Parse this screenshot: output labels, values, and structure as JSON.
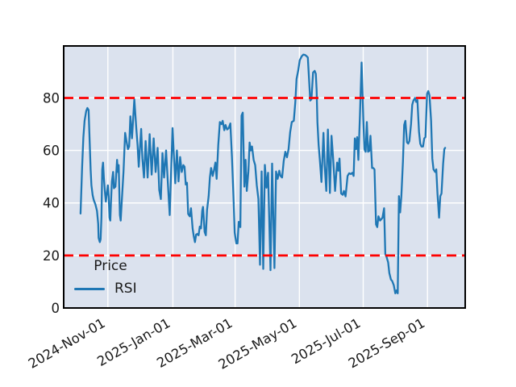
{
  "figure": {
    "background": "#ffffff"
  },
  "legend": {
    "title": "Price",
    "items": [
      {
        "label": "RSI",
        "color": "#1f77b4"
      }
    ]
  },
  "chart_data": {
    "type": "line",
    "title": "",
    "xlabel": "",
    "ylabel": "",
    "plot_background": "#dbe2ee",
    "grid_color": "#ffffff",
    "border_color": "#000000",
    "tick_text_color": "#1a1a1a",
    "x_axis": {
      "tick_labels": [
        "2024-Nov-01",
        "2025-Jan-01",
        "2025-Mar-01",
        "2025-May-01",
        "2025-Jul-01",
        "2025-Sep-01"
      ],
      "tick_positions": [
        0.11,
        0.272,
        0.427,
        0.587,
        0.746,
        0.906
      ],
      "unit": "fraction of x-axis width"
    },
    "y_axis": {
      "ticks": [
        0,
        20,
        40,
        60,
        80
      ],
      "range": [
        0,
        99.8
      ]
    },
    "thresholds": [
      {
        "value": 80,
        "color": "#fe0000",
        "style": "dashed"
      },
      {
        "value": 20,
        "color": "#fe0000",
        "style": "dashed"
      }
    ],
    "legend_position": "lower left",
    "grid": true,
    "series": [
      {
        "name": "RSI",
        "color": "#1f77b4",
        "points": [
          [
            0.042,
            36
          ],
          [
            0.046,
            54
          ],
          [
            0.049,
            65
          ],
          [
            0.052,
            71.3
          ],
          [
            0.056,
            75
          ],
          [
            0.059,
            76.2
          ],
          [
            0.062,
            75.4
          ],
          [
            0.064,
            66.2
          ],
          [
            0.067,
            52.8
          ],
          [
            0.069,
            46.7
          ],
          [
            0.072,
            43
          ],
          [
            0.075,
            41.1
          ],
          [
            0.079,
            39.5
          ],
          [
            0.083,
            37
          ],
          [
            0.086,
            32
          ],
          [
            0.087,
            26.7
          ],
          [
            0.09,
            25.1
          ],
          [
            0.092,
            26.2
          ],
          [
            0.094,
            34.4
          ],
          [
            0.096,
            52.8
          ],
          [
            0.098,
            55.4
          ],
          [
            0.1,
            49.7
          ],
          [
            0.103,
            43.6
          ],
          [
            0.105,
            40.5
          ],
          [
            0.107,
            43.1
          ],
          [
            0.11,
            46.7
          ],
          [
            0.112,
            42.6
          ],
          [
            0.114,
            34.4
          ],
          [
            0.116,
            33.3
          ],
          [
            0.118,
            41.5
          ],
          [
            0.12,
            48.2
          ],
          [
            0.123,
            51.8
          ],
          [
            0.125,
            45.6
          ],
          [
            0.129,
            46.2
          ],
          [
            0.133,
            56.4
          ],
          [
            0.135,
            51.8
          ],
          [
            0.137,
            54.4
          ],
          [
            0.14,
            35.4
          ],
          [
            0.142,
            33.3
          ],
          [
            0.145,
            41.5
          ],
          [
            0.149,
            52
          ],
          [
            0.153,
            66.7
          ],
          [
            0.157,
            63
          ],
          [
            0.16,
            60.5
          ],
          [
            0.163,
            61.5
          ],
          [
            0.166,
            73
          ],
          [
            0.17,
            64.6
          ],
          [
            0.176,
            79.5
          ],
          [
            0.181,
            68.2
          ],
          [
            0.184,
            62.1
          ],
          [
            0.187,
            53.8
          ],
          [
            0.193,
            68.2
          ],
          [
            0.196,
            56.9
          ],
          [
            0.2,
            49.7
          ],
          [
            0.204,
            63.6
          ],
          [
            0.209,
            49.7
          ],
          [
            0.214,
            66.2
          ],
          [
            0.219,
            50.8
          ],
          [
            0.224,
            64.6
          ],
          [
            0.229,
            51.8
          ],
          [
            0.234,
            61
          ],
          [
            0.238,
            45
          ],
          [
            0.242,
            41.5
          ],
          [
            0.246,
            59
          ],
          [
            0.25,
            49.7
          ],
          [
            0.255,
            60
          ],
          [
            0.259,
            48.7
          ],
          [
            0.264,
            35.4
          ],
          [
            0.271,
            68.5
          ],
          [
            0.275,
            55.9
          ],
          [
            0.278,
            47.5
          ],
          [
            0.282,
            60
          ],
          [
            0.286,
            48.2
          ],
          [
            0.29,
            57.5
          ],
          [
            0.294,
            51.8
          ],
          [
            0.298,
            54.4
          ],
          [
            0.301,
            53.8
          ],
          [
            0.304,
            47
          ],
          [
            0.307,
            47.7
          ],
          [
            0.31,
            35.8
          ],
          [
            0.314,
            34.9
          ],
          [
            0.317,
            38
          ],
          [
            0.321,
            30.3
          ],
          [
            0.324,
            27.2
          ],
          [
            0.327,
            25.1
          ],
          [
            0.33,
            28
          ],
          [
            0.333,
            28.2
          ],
          [
            0.336,
            27.7
          ],
          [
            0.339,
            31
          ],
          [
            0.342,
            30.3
          ],
          [
            0.345,
            37
          ],
          [
            0.347,
            38.5
          ],
          [
            0.351,
            29
          ],
          [
            0.354,
            27.7
          ],
          [
            0.357,
            37.4
          ],
          [
            0.361,
            42.6
          ],
          [
            0.364,
            49.7
          ],
          [
            0.367,
            53.3
          ],
          [
            0.371,
            50.3
          ],
          [
            0.374,
            52.3
          ],
          [
            0.378,
            55.4
          ],
          [
            0.381,
            49.2
          ],
          [
            0.385,
            62
          ],
          [
            0.389,
            70.8
          ],
          [
            0.393,
            70
          ],
          [
            0.396,
            71.3
          ],
          [
            0.4,
            67.7
          ],
          [
            0.403,
            69.7
          ],
          [
            0.407,
            68
          ],
          [
            0.411,
            68.5
          ],
          [
            0.415,
            70.3
          ],
          [
            0.419,
            57.4
          ],
          [
            0.423,
            41.5
          ],
          [
            0.426,
            28.7
          ],
          [
            0.43,
            24.6
          ],
          [
            0.433,
            24.6
          ],
          [
            0.436,
            32.8
          ],
          [
            0.44,
            30.8
          ],
          [
            0.443,
            73.3
          ],
          [
            0.446,
            74.4
          ],
          [
            0.45,
            46.2
          ],
          [
            0.453,
            56.4
          ],
          [
            0.456,
            44.6
          ],
          [
            0.46,
            52
          ],
          [
            0.463,
            63
          ],
          [
            0.466,
            60
          ],
          [
            0.469,
            61.5
          ],
          [
            0.473,
            56.4
          ],
          [
            0.477,
            54.4
          ],
          [
            0.481,
            46.7
          ],
          [
            0.485,
            41.5
          ],
          [
            0.489,
            16.5
          ],
          [
            0.493,
            52
          ],
          [
            0.497,
            14.9
          ],
          [
            0.501,
            54.5
          ],
          [
            0.505,
            45.8
          ],
          [
            0.509,
            51.5
          ],
          [
            0.515,
            14.4
          ],
          [
            0.519,
            55
          ],
          [
            0.525,
            15.2
          ],
          [
            0.529,
            52
          ],
          [
            0.533,
            49.2
          ],
          [
            0.537,
            52.3
          ],
          [
            0.54,
            50.3
          ],
          [
            0.544,
            49.7
          ],
          [
            0.548,
            56
          ],
          [
            0.552,
            59.5
          ],
          [
            0.556,
            57.4
          ],
          [
            0.56,
            60.5
          ],
          [
            0.564,
            67
          ],
          [
            0.568,
            70.8
          ],
          [
            0.573,
            71.3
          ],
          [
            0.577,
            78.5
          ],
          [
            0.58,
            87.2
          ],
          [
            0.584,
            90.3
          ],
          [
            0.588,
            94.4
          ],
          [
            0.593,
            95.9
          ],
          [
            0.597,
            96.5
          ],
          [
            0.601,
            96.4
          ],
          [
            0.605,
            95.9
          ],
          [
            0.608,
            95.4
          ],
          [
            0.611,
            87.2
          ],
          [
            0.614,
            79
          ],
          [
            0.617,
            79.5
          ],
          [
            0.621,
            89.7
          ],
          [
            0.625,
            90.3
          ],
          [
            0.628,
            89.2
          ],
          [
            0.63,
            83.1
          ],
          [
            0.632,
            70.8
          ],
          [
            0.635,
            62.1
          ],
          [
            0.638,
            56.4
          ],
          [
            0.642,
            48
          ],
          [
            0.647,
            66.7
          ],
          [
            0.65,
            54.4
          ],
          [
            0.654,
            44.6
          ],
          [
            0.658,
            68
          ],
          [
            0.663,
            43.8
          ],
          [
            0.667,
            65.6
          ],
          [
            0.671,
            56.9
          ],
          [
            0.676,
            44.6
          ],
          [
            0.681,
            55.4
          ],
          [
            0.684,
            52.3
          ],
          [
            0.687,
            56.9
          ],
          [
            0.691,
            43.6
          ],
          [
            0.695,
            43.1
          ],
          [
            0.698,
            44.6
          ],
          [
            0.702,
            42.5
          ],
          [
            0.707,
            50.3
          ],
          [
            0.711,
            51.3
          ],
          [
            0.715,
            51
          ],
          [
            0.719,
            51.5
          ],
          [
            0.722,
            50.3
          ],
          [
            0.725,
            64.6
          ],
          [
            0.728,
            60.5
          ],
          [
            0.731,
            65.1
          ],
          [
            0.734,
            56.4
          ],
          [
            0.738,
            74
          ],
          [
            0.742,
            93.5
          ],
          [
            0.746,
            73
          ],
          [
            0.749,
            60.5
          ],
          [
            0.752,
            59.5
          ],
          [
            0.755,
            70.8
          ],
          [
            0.758,
            59.5
          ],
          [
            0.761,
            59.8
          ],
          [
            0.764,
            65.6
          ],
          [
            0.768,
            53.3
          ],
          [
            0.771,
            53.3
          ],
          [
            0.774,
            52.8
          ],
          [
            0.778,
            31.8
          ],
          [
            0.781,
            30.8
          ],
          [
            0.784,
            34.9
          ],
          [
            0.788,
            33.3
          ],
          [
            0.791,
            33.8
          ],
          [
            0.794,
            34.4
          ],
          [
            0.798,
            38
          ],
          [
            0.801,
            20.5
          ],
          [
            0.804,
            19.5
          ],
          [
            0.808,
            17.4
          ],
          [
            0.811,
            13.3
          ],
          [
            0.815,
            10.8
          ],
          [
            0.818,
            10.3
          ],
          [
            0.822,
            8.7
          ],
          [
            0.826,
            5.6
          ],
          [
            0.829,
            6.7
          ],
          [
            0.832,
            5.6
          ],
          [
            0.835,
            42.6
          ],
          [
            0.838,
            36.4
          ],
          [
            0.841,
            42.6
          ],
          [
            0.845,
            55.9
          ],
          [
            0.848,
            69.7
          ],
          [
            0.851,
            71.3
          ],
          [
            0.855,
            63.1
          ],
          [
            0.858,
            62.6
          ],
          [
            0.861,
            63.6
          ],
          [
            0.865,
            70
          ],
          [
            0.868,
            77.4
          ],
          [
            0.871,
            79
          ],
          [
            0.875,
            80
          ],
          [
            0.878,
            78.5
          ],
          [
            0.881,
            79.2
          ],
          [
            0.885,
            67.2
          ],
          [
            0.888,
            62.6
          ],
          [
            0.891,
            61.5
          ],
          [
            0.895,
            61.5
          ],
          [
            0.898,
            64.6
          ],
          [
            0.901,
            65.1
          ],
          [
            0.905,
            81.5
          ],
          [
            0.908,
            82.6
          ],
          [
            0.911,
            81
          ],
          [
            0.915,
            71.3
          ],
          [
            0.918,
            56.9
          ],
          [
            0.921,
            52.8
          ],
          [
            0.925,
            51.8
          ],
          [
            0.928,
            52.8
          ],
          [
            0.931,
            43.6
          ],
          [
            0.935,
            34.4
          ],
          [
            0.938,
            42.6
          ],
          [
            0.941,
            43.6
          ],
          [
            0.945,
            54.9
          ],
          [
            0.948,
            60.5
          ],
          [
            0.95,
            61
          ]
        ]
      }
    ]
  }
}
